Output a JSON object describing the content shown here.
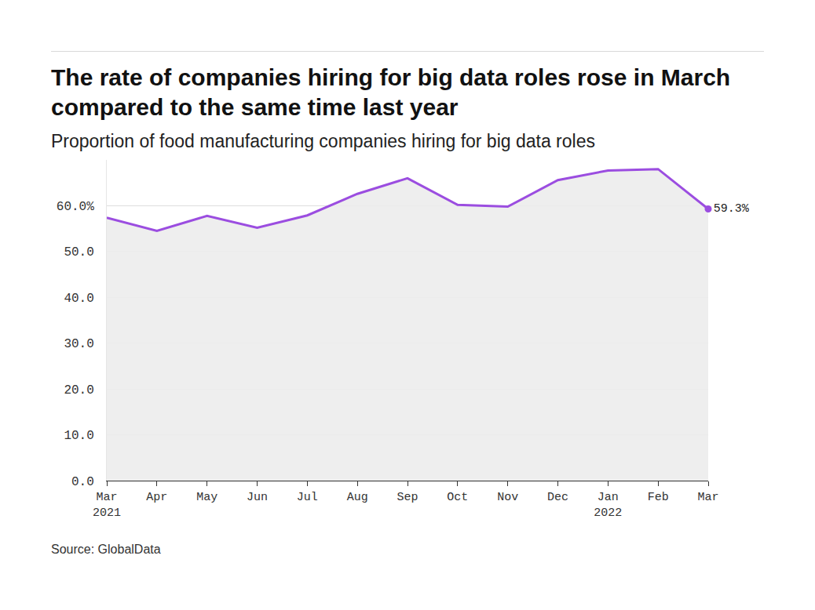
{
  "chart_data": {
    "type": "line",
    "title": "The rate of companies hiring for big data roles rose in March compared to the same time last year",
    "subtitle": "Proportion of food manufacturing companies hiring for big data roles",
    "source": "Source: GlobalData",
    "categories": [
      "Mar 2021",
      "Apr",
      "May",
      "Jun",
      "Jul",
      "Aug",
      "Sep",
      "Oct",
      "Nov",
      "Dec",
      "Jan 2022",
      "Feb",
      "Mar"
    ],
    "values": [
      57.4,
      54.5,
      57.8,
      55.2,
      57.9,
      62.6,
      66.0,
      60.2,
      59.8,
      65.6,
      67.7,
      68.0,
      59.3
    ],
    "value_labels": [
      null,
      null,
      null,
      null,
      null,
      null,
      null,
      null,
      null,
      null,
      null,
      null,
      "59.3%"
    ],
    "data_labels": true,
    "color": "#9b4de0",
    "marker": "circle",
    "ylim": [
      0,
      70
    ],
    "yticks": [
      {
        "value": 0,
        "label": "0.0"
      },
      {
        "value": 10,
        "label": "10.0"
      },
      {
        "value": 20,
        "label": "20.0"
      },
      {
        "value": 30,
        "label": "30.0"
      },
      {
        "value": 40,
        "label": "40.0"
      },
      {
        "value": 50,
        "label": "50.0"
      },
      {
        "value": 60,
        "label": "60.0%"
      }
    ],
    "grid": true
  }
}
